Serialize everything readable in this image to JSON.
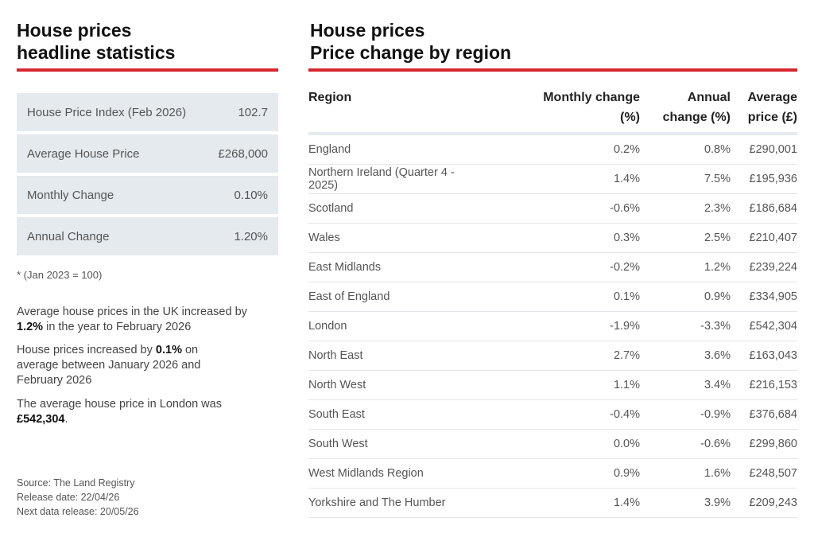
{
  "left": {
    "title_line1": "House prices",
    "title_line2": "headline statistics",
    "stats": [
      {
        "label": "House Price Index (Feb 2026)",
        "value": "102.7"
      },
      {
        "label": "Average House Price",
        "value": "£268,000"
      },
      {
        "label": "Monthly Change",
        "value": "0.10%"
      },
      {
        "label": "Annual Change",
        "value": "1.20%"
      }
    ],
    "footnote": "* (Jan 2023 = 100)",
    "para1_a": "Average house prices in the UK increased by ",
    "para1_b": "1.2%",
    "para1_c": " in the year to February 2026",
    "para2_a": "House prices increased by ",
    "para2_b": "0.1%",
    "para2_c": " on average between January 2026 and February 2026",
    "para3_a": "The average house price in London was ",
    "para3_b": "£542,304",
    "para3_c": ".",
    "source": "Source: The Land Registry",
    "release_date": "Release date: 22/04/26",
    "next_release": "Next data release: 20/05/26"
  },
  "right": {
    "title_line1": "House prices",
    "title_line2": "Price change by region",
    "headers": {
      "region": "Region",
      "monthly_1": "Monthly change",
      "monthly_2": "(%)",
      "annual_1": "Annual",
      "annual_2": "change (%)",
      "avg_1": "Average",
      "avg_2": "price (£)"
    },
    "rows": [
      [
        "England",
        "0.2%",
        "0.8%",
        "£290,001"
      ],
      [
        "Northern Ireland (Quarter 4 - 2025)",
        "1.4%",
        "7.5%",
        "£195,936"
      ],
      [
        "Scotland",
        "-0.6%",
        "2.3%",
        "£186,684"
      ],
      [
        "Wales",
        "0.3%",
        "2.5%",
        "£210,407"
      ],
      [
        "East Midlands",
        "-0.2%",
        "1.2%",
        "£239,224"
      ],
      [
        "East of England",
        "0.1%",
        "0.9%",
        "£334,905"
      ],
      [
        "London",
        "-1.9%",
        "-3.3%",
        "£542,304"
      ],
      [
        "North East",
        "2.7%",
        "3.6%",
        "£163,043"
      ],
      [
        "North West",
        "1.1%",
        "3.4%",
        "£216,153"
      ],
      [
        "South East",
        "-0.4%",
        "-0.9%",
        "£376,684"
      ],
      [
        "South West",
        "0.0%",
        "-0.6%",
        "£299,860"
      ],
      [
        "West Midlands Region",
        "0.9%",
        "1.6%",
        "£248,507"
      ],
      [
        "Yorkshire and The Humber",
        "1.4%",
        "3.9%",
        "£209,243"
      ]
    ]
  },
  "colors": {
    "accent_rule": "#d7262e",
    "stat_bg": "#e5eaee"
  }
}
